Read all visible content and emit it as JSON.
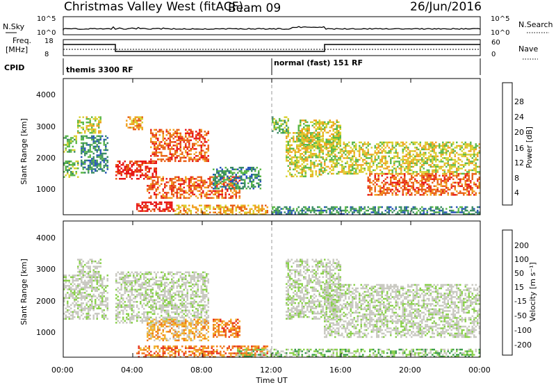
{
  "header": {
    "station": "Christmas Valley West (fitACF)",
    "beam": "Beam 09",
    "date": "26/Jun/2016"
  },
  "strips": {
    "nsky_label": "N.Sky",
    "nsky_ticks": [
      "10^5",
      "10^0"
    ],
    "nsearch_label": "N.Search",
    "nsearch_ticks": [
      "10^5",
      "10^0"
    ],
    "freq_label_line1": "Freq.",
    "freq_label_line2": "[MHz]",
    "freq_ticks": [
      "18",
      "8"
    ],
    "nave_label": "Nave",
    "nave_ticks": [
      "60",
      "0"
    ],
    "cpid_label": "CPID",
    "cpid_segments": [
      "themis 3300 RF",
      "normal (fast) 151 RF"
    ]
  },
  "x_axis": {
    "label": "Time UT",
    "ticks": [
      "00:00",
      "04:00",
      "08:00",
      "12:00",
      "16:00",
      "20:00",
      "00:00"
    ],
    "range_hours": [
      0,
      24
    ]
  },
  "chart_data": [
    {
      "type": "heatmap",
      "name": "power",
      "ylabel": "Slant Range [km]",
      "yticks": [
        "4000",
        "3000",
        "2000",
        "1000"
      ],
      "ylim": [
        180,
        4500
      ],
      "colorbar_label": "Power [dB]",
      "colorbar_ticks": [
        "28",
        "24",
        "20",
        "16",
        "12",
        "8",
        "4"
      ],
      "colors": [
        "#0a10e8",
        "#2855b8",
        "#3a8c64",
        "#5cb848",
        "#d8d030",
        "#f0a020",
        "#e86018",
        "#e81818"
      ],
      "regions": [
        {
          "t": [
            0.0,
            0.8
          ],
          "r": [
            2200,
            2700
          ],
          "level": 3
        },
        {
          "t": [
            0.0,
            0.9
          ],
          "r": [
            1400,
            1900
          ],
          "level": 3
        },
        {
          "t": [
            0.8,
            2.2
          ],
          "r": [
            2800,
            3300
          ],
          "level": 4
        },
        {
          "t": [
            1.0,
            2.6
          ],
          "r": [
            1500,
            2700
          ],
          "level": 2
        },
        {
          "t": [
            3.0,
            5.4
          ],
          "r": [
            1300,
            1900
          ],
          "level": 7
        },
        {
          "t": [
            3.6,
            4.6
          ],
          "r": [
            2900,
            3300
          ],
          "level": 5
        },
        {
          "t": [
            5.0,
            8.4
          ],
          "r": [
            1900,
            2900
          ],
          "level": 6
        },
        {
          "t": [
            4.8,
            10.2
          ],
          "r": [
            700,
            1400
          ],
          "level": 6
        },
        {
          "t": [
            4.2,
            6.4
          ],
          "r": [
            300,
            600
          ],
          "level": 7
        },
        {
          "t": [
            6.4,
            11.8
          ],
          "r": [
            200,
            500
          ],
          "level": 5
        },
        {
          "t": [
            8.6,
            11.4
          ],
          "r": [
            1000,
            1700
          ],
          "level": 2
        },
        {
          "t": [
            12.0,
            13.0
          ],
          "r": [
            2800,
            3300
          ],
          "level": 3
        },
        {
          "t": [
            12.8,
            15.0
          ],
          "r": [
            1400,
            2800
          ],
          "level": 4
        },
        {
          "t": [
            13.5,
            16.0
          ],
          "r": [
            2300,
            3200
          ],
          "level": 4
        },
        {
          "t": [
            15.0,
            24.0
          ],
          "r": [
            1500,
            2500
          ],
          "level": 4
        },
        {
          "t": [
            17.5,
            24.0
          ],
          "r": [
            800,
            1500
          ],
          "level": 6
        },
        {
          "t": [
            12.0,
            24.0
          ],
          "r": [
            200,
            450
          ],
          "level": 2
        }
      ]
    },
    {
      "type": "heatmap",
      "name": "velocity",
      "ylabel": "Slant Range [km]",
      "yticks": [
        "4000",
        "3000",
        "2000",
        "1000"
      ],
      "ylim": [
        180,
        4500
      ],
      "colorbar_label": "Velocity [m s⁻¹]",
      "colorbar_ticks": [
        "200",
        "100",
        "50",
        "15",
        "-15",
        "-50",
        "-100",
        "-200"
      ],
      "colors": [
        "#1818d8",
        "#2878a0",
        "#3c9c4c",
        "#88d048",
        "#c8c8c0",
        "#c8c8c0",
        "#f0b028",
        "#f07818",
        "#e83018"
      ],
      "regions": [
        {
          "t": [
            0.0,
            2.6
          ],
          "r": [
            1400,
            2800
          ],
          "level": 4
        },
        {
          "t": [
            0.8,
            2.2
          ],
          "r": [
            2800,
            3300
          ],
          "level": 4
        },
        {
          "t": [
            3.0,
            8.4
          ],
          "r": [
            1300,
            2900
          ],
          "level": 4
        },
        {
          "t": [
            4.8,
            8.4
          ],
          "r": [
            700,
            1400
          ],
          "level": 6
        },
        {
          "t": [
            8.6,
            10.2
          ],
          "r": [
            800,
            1400
          ],
          "level": 7
        },
        {
          "t": [
            4.2,
            11.8
          ],
          "r": [
            200,
            550
          ],
          "level": 7
        },
        {
          "t": [
            12.8,
            16.0
          ],
          "r": [
            1400,
            3300
          ],
          "level": 4
        },
        {
          "t": [
            15.0,
            24.0
          ],
          "r": [
            800,
            2500
          ],
          "level": 4
        },
        {
          "t": [
            10.0,
            24.0
          ],
          "r": [
            200,
            450
          ],
          "level": 3
        }
      ]
    }
  ]
}
